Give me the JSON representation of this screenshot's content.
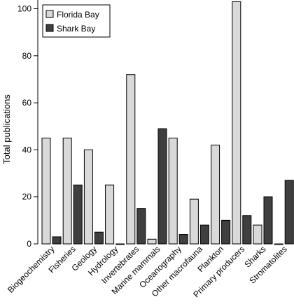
{
  "chart_data": {
    "type": "bar",
    "title": "",
    "xlabel": "",
    "ylabel": "Total publications",
    "ylim": [
      0,
      103
    ],
    "yticks": [
      0,
      20,
      40,
      60,
      80,
      100
    ],
    "grid": false,
    "legend_position": "top-left",
    "categories": [
      "Biogeochemistry",
      "Fisheries",
      "Geology",
      "Hydrology",
      "Invertebrates",
      "Marine mammals",
      "Oceanography",
      "Other macrofauna",
      "Plankton",
      "Primary producers",
      "Sharks",
      "Stromatolites"
    ],
    "series": [
      {
        "name": "Florida Bay",
        "color": "#d9d9d9",
        "values": [
          45,
          45,
          40,
          25,
          72,
          2,
          45,
          19,
          42,
          103,
          8,
          0
        ]
      },
      {
        "name": "Shark Bay",
        "color": "#3f3f3f",
        "values": [
          3,
          25,
          5,
          0,
          15,
          49,
          4,
          8,
          10,
          12,
          20,
          27
        ]
      }
    ]
  }
}
